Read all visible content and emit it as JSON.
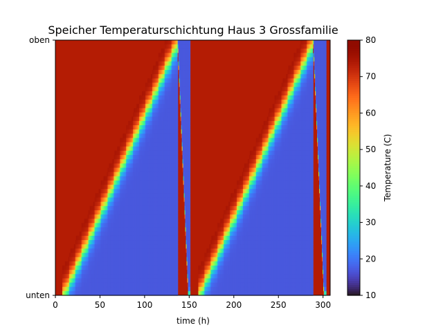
{
  "chart_data": {
    "type": "heatmap",
    "title": "Speicher Temperaturschichtung Haus 3 Grossfamilie",
    "xlabel": "time (h)",
    "ylabel": "",
    "x_range": [
      0,
      308
    ],
    "x_ticks": [
      0,
      50,
      100,
      150,
      200,
      250,
      300
    ],
    "y_tick_labels": [
      {
        "label": "oben",
        "level": 1
      },
      {
        "label": "unten",
        "level": 0
      }
    ],
    "colorbar": {
      "label": "Temperature (C)",
      "range": [
        10,
        80
      ],
      "ticks": [
        10,
        20,
        30,
        40,
        50,
        60,
        70,
        80
      ],
      "colormap": "turbo"
    },
    "hot_temperature": 75,
    "cold_temperature": 17,
    "cycles": [
      {
        "discharge_start": 8,
        "discharge_end": 137,
        "steps": 18,
        "recharge_start_level": 1,
        "recharge_end_time": 149
      },
      {
        "discharge_start": 160,
        "discharge_end": 289,
        "steps": 18,
        "recharge_start_level": 1,
        "recharge_end_time": 301
      }
    ],
    "final_hot_from": 304
  }
}
